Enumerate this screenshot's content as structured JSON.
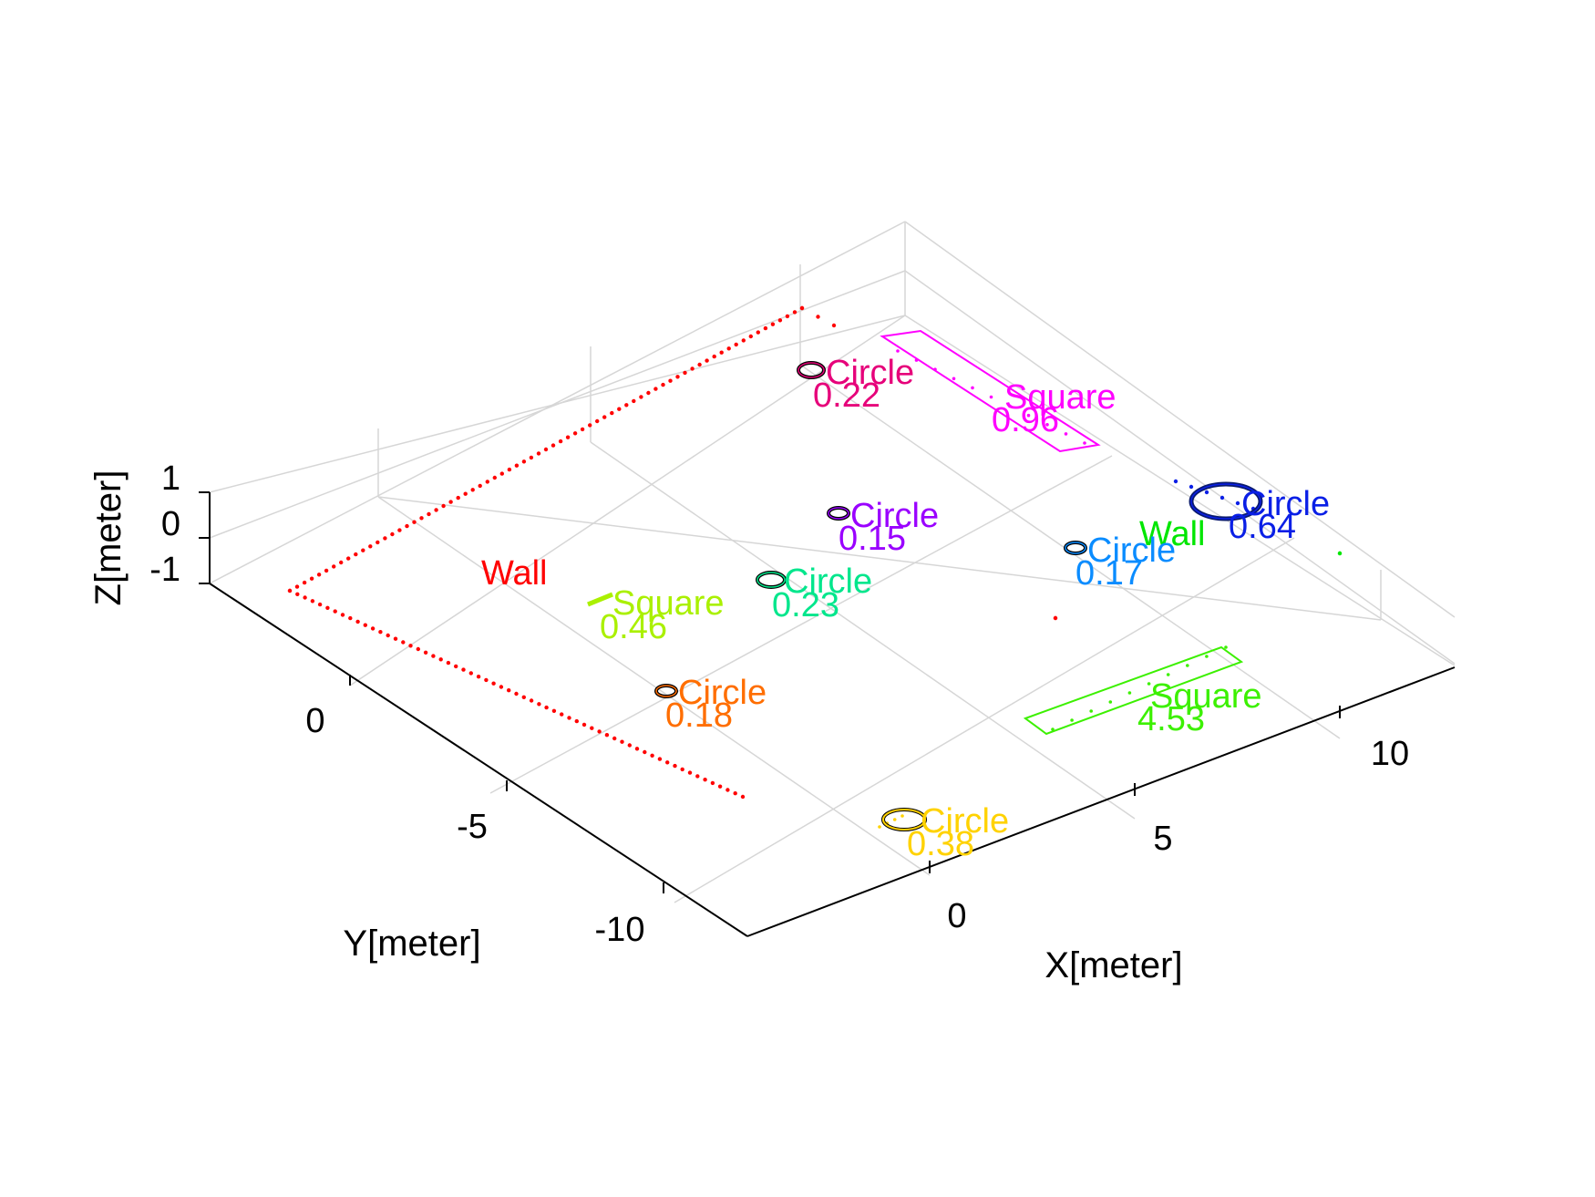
{
  "chart_data": {
    "type": "scatter",
    "projection": "3d-perspective",
    "grid": true,
    "xlabel": "X[meter]",
    "ylabel": "Y[meter]",
    "zlabel": "Z[meter]",
    "x_ticks": [
      "0",
      "5",
      "10"
    ],
    "y_ticks": [
      "0",
      "-5",
      "-10"
    ],
    "z_ticks": [
      "1",
      "0",
      "-1"
    ],
    "xlim": [
      -2,
      13
    ],
    "ylim": [
      -13,
      4
    ],
    "zlim": [
      -1,
      1
    ],
    "objects": [
      {
        "label": "Wall",
        "value": "",
        "color": "#ff0000"
      },
      {
        "label": "Circle",
        "value": "0.22",
        "color": "#e6007a"
      },
      {
        "label": "Square",
        "value": "0.96",
        "color": "#ff00ff"
      },
      {
        "label": "Circle",
        "value": "0.64",
        "color": "#0a1fe6"
      },
      {
        "label": "Wall",
        "value": "",
        "color": "#00e600"
      },
      {
        "label": "Circle",
        "value": "0.15",
        "color": "#9a00ff"
      },
      {
        "label": "Circle",
        "value": "0.17",
        "color": "#0a8cff"
      },
      {
        "label": "Circle",
        "value": "0.23",
        "color": "#00e68c"
      },
      {
        "label": "Square",
        "value": "0.46",
        "color": "#aaf000"
      },
      {
        "label": "Square",
        "value": "4.53",
        "color": "#3cf000"
      },
      {
        "label": "Circle",
        "value": "0.18",
        "color": "#ff6e00"
      },
      {
        "label": "Circle",
        "value": "0.38",
        "color": "#ffd200"
      }
    ]
  }
}
